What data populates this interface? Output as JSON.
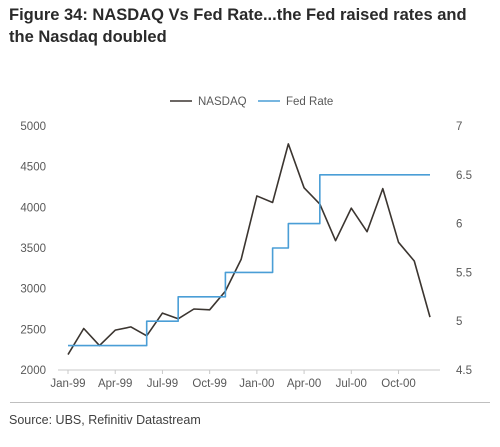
{
  "title": "Figure 34: NASDAQ Vs Fed Rate...the Fed raised rates and the Nasdaq doubled",
  "source": "Source: UBS, Refinitiv Datastream",
  "colors": {
    "nasdaq": "#3b3530",
    "fed_rate": "#4a9ed6",
    "axis": "#c8c8c8",
    "text": "#595959"
  },
  "chart_data": {
    "type": "line",
    "legend_position": "top-center",
    "grid": false,
    "x": [
      "Jan-99",
      "Feb-99",
      "Mar-99",
      "Apr-99",
      "May-99",
      "Jun-99",
      "Jul-99",
      "Aug-99",
      "Sep-99",
      "Oct-99",
      "Nov-99",
      "Dec-99",
      "Jan-00",
      "Feb-00",
      "Mar-00",
      "Apr-00",
      "May-00",
      "Jun-00",
      "Jul-00",
      "Aug-00",
      "Sep-00",
      "Oct-00",
      "Nov-00",
      "Dec-00"
    ],
    "x_tick_labels": [
      "Jan-99",
      "Apr-99",
      "Jul-99",
      "Oct-99",
      "Jan-00",
      "Apr-00",
      "Jul-00",
      "Oct-00"
    ],
    "series": [
      {
        "name": "NASDAQ",
        "axis": "left",
        "values": [
          2190,
          2510,
          2300,
          2490,
          2530,
          2420,
          2700,
          2630,
          2750,
          2740,
          2970,
          3360,
          4140,
          4060,
          4780,
          4240,
          4040,
          3590,
          3990,
          3700,
          4230,
          3570,
          3340,
          2650
        ]
      },
      {
        "name": "Fed Rate",
        "axis": "right",
        "values": [
          4.75,
          4.75,
          4.75,
          4.75,
          4.75,
          5.0,
          5.0,
          5.25,
          5.25,
          5.25,
          5.5,
          5.5,
          5.5,
          5.75,
          6.0,
          6.0,
          6.5,
          6.5,
          6.5,
          6.5,
          6.5,
          6.5,
          6.5,
          6.5
        ]
      }
    ],
    "y_left": {
      "ylim": [
        2000,
        5000
      ],
      "ticks": [
        2000,
        2500,
        3000,
        3500,
        4000,
        4500,
        5000
      ]
    },
    "y_right": {
      "ylim": [
        4.5,
        7
      ],
      "ticks": [
        "4.5",
        "5",
        "5.5",
        "6",
        "6.5",
        "7"
      ]
    }
  }
}
